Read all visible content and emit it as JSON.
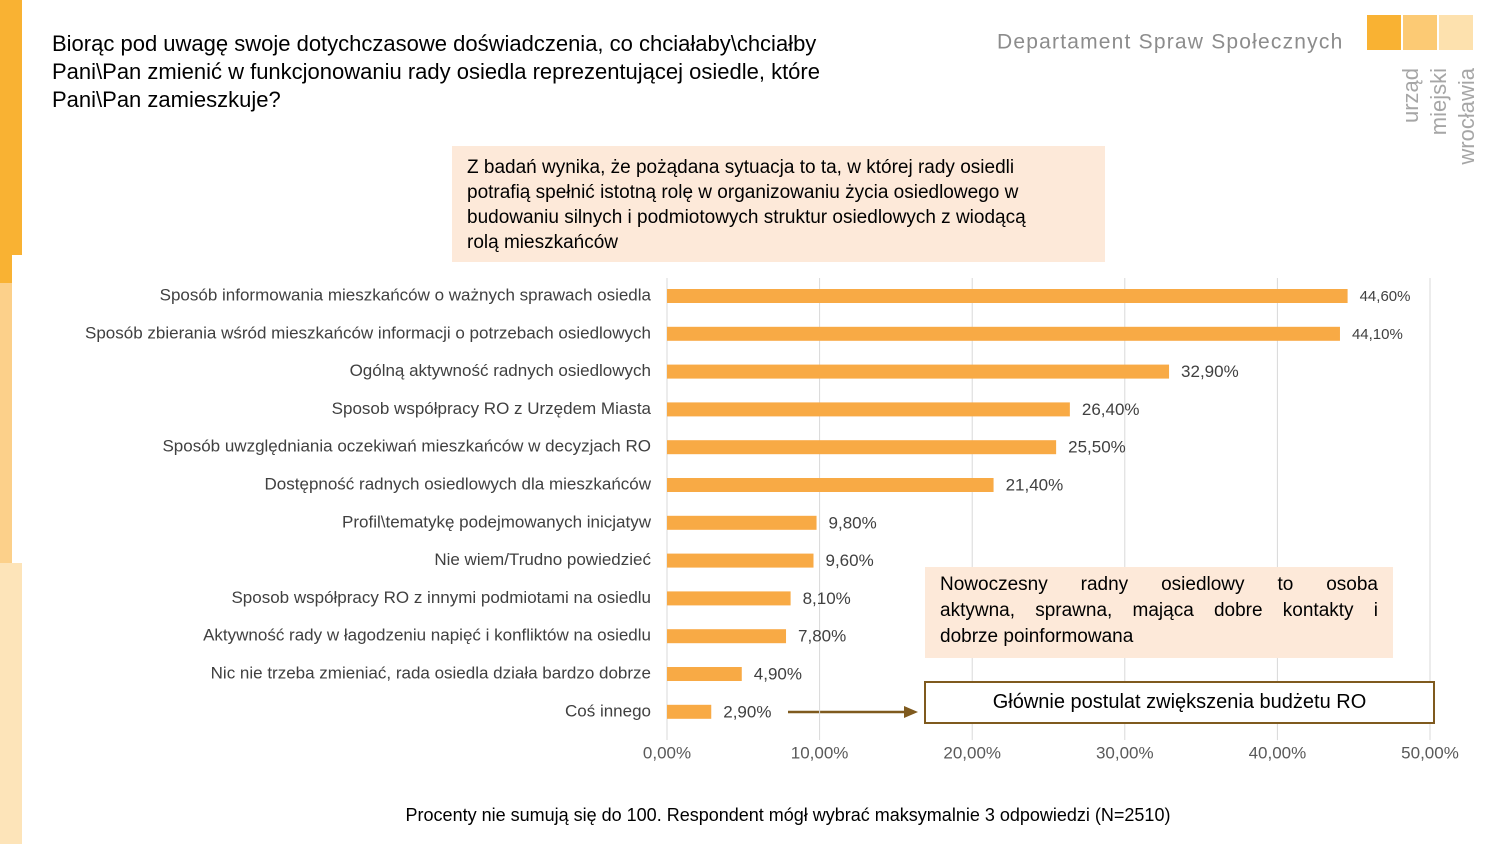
{
  "header": {
    "department": "Departament Spraw Społecznych",
    "logo": [
      "urząd",
      "miejski",
      "wrocławia"
    ]
  },
  "chart_data": {
    "type": "bar",
    "orientation": "horizontal",
    "title": [
      "Biorąc pod uwagę swoje dotychczasowe doświadczenia, co chciałaby\\chciałby",
      "Pani\\Pan zmienić w funkcjonowaniu rady osiedla reprezentującej osiedle, które",
      "Pani\\Pan zamieszkuje?"
    ],
    "categories": [
      "Sposób informowania mieszkańców o ważnych sprawach osiedla",
      "Sposób zbierania wśród mieszkańców informacji o potrzebach osiedlowych",
      "Ogólną aktywność radnych osiedlowych",
      "Sposob współpracy RO z Urzędem Miasta",
      "Sposób uwzględniania oczekiwań mieszkańców w decyzjach RO",
      "Dostępność radnych osiedlowych dla mieszkańców",
      "Profil\\tematykę podejmowanych inicjatyw",
      "Nie wiem/Trudno powiedzieć",
      "Sposob współpracy RO z innymi podmiotami na osiedlu",
      "Aktywność rady w łagodzeniu napięć i konfliktów na osiedlu",
      "Nic nie trzeba zmieniać, rada osiedla działa bardzo dobrze",
      "Coś innego"
    ],
    "values": [
      44.6,
      44.1,
      32.9,
      26.4,
      25.5,
      21.4,
      9.8,
      9.6,
      8.1,
      7.8,
      4.9,
      2.9
    ],
    "value_labels": [
      "44,60%",
      "44,10%",
      "32,90%",
      "26,40%",
      "25,50%",
      "21,40%",
      "9,80%",
      "9,60%",
      "8,10%",
      "7,80%",
      "4,90%",
      "2,90%"
    ],
    "color": "#f8aa45",
    "xlim": [
      0,
      50
    ],
    "xticks": [
      {
        "value": 0,
        "label": "0,00%"
      },
      {
        "value": 10,
        "label": "10,00%"
      },
      {
        "value": 20,
        "label": "20,00%"
      },
      {
        "value": 30,
        "label": "30,00%"
      },
      {
        "value": 40,
        "label": "40,00%"
      },
      {
        "value": 50,
        "label": "50,00%"
      }
    ],
    "grid": true,
    "annotations": [
      [
        "Z badań wynika, że pożądana sytuacja to ta, w której rady osiedli",
        "potrafią spełnić istotną rolę w organizowaniu życia osiedlowego w",
        "budowaniu silnych i podmiotowych struktur osiedlowych z wiodącą",
        "rolą mieszkańców"
      ],
      [
        "Nowoczesny radny osiedlowy to osoba",
        "aktywna, sprawna, mająca dobre kontakty i",
        "dobrze poinformowana"
      ],
      [
        "Głównie postulat zwiększenia budżetu RO"
      ]
    ],
    "footnote": "Procenty nie sumują się do 100. Respondent mógł wybrać maksymalnie 3 odpowiedzi (N=2510)"
  }
}
